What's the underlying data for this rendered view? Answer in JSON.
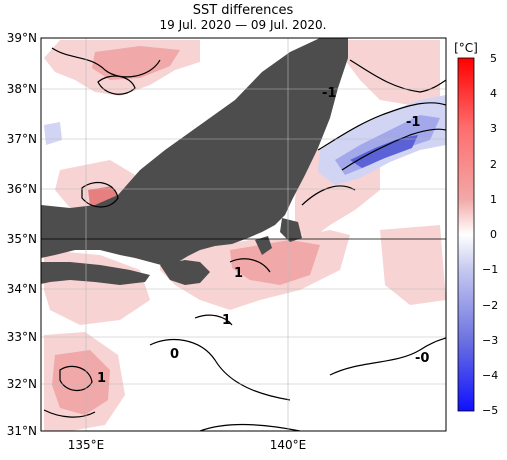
{
  "title": "SST differences",
  "subtitle": "19 Jul. 2020 — 09 Jul. 2020.",
  "lat_labels": [
    "39°N",
    "38°N",
    "37°N",
    "36°N",
    "35°N",
    "34°N",
    "33°N",
    "32°N",
    "31°N"
  ],
  "lon_labels": [
    "135°E",
    "140°E"
  ],
  "colorbar": {
    "unit_label": "[°C]",
    "ticks": [
      "5",
      "4",
      "3",
      "2",
      "1",
      "0",
      "−1",
      "−2",
      "−3",
      "−4",
      "−5"
    ]
  },
  "contour_labels": [
    "-1",
    "-1",
    "1",
    "1",
    "1",
    "0",
    "-0"
  ],
  "colors": {
    "land": "#4d4d4d",
    "sea_base": "#ffffff",
    "warm_light": "#f7d3d3",
    "warm_mid": "#f0a8a8",
    "warm_strong": "#e68080",
    "cool_light": "#d2d4f4",
    "cool_mid": "#a3a8ea",
    "cool_strong": "#5a62d6",
    "contour": "#000000"
  },
  "chart_data": {
    "type": "heatmap",
    "title": "SST differences",
    "subtitle": "19 Jul. 2020 — 09 Jul. 2020.",
    "x_range_lon": [
      134.0,
      144.0
    ],
    "y_range_lat": [
      31.0,
      39.0
    ],
    "units": "°C",
    "color_range": [
      -5,
      5
    ],
    "grid": true,
    "notes_visible": "contour labels shown: -1, -1, 1, 1, 1, 0, -0"
  }
}
